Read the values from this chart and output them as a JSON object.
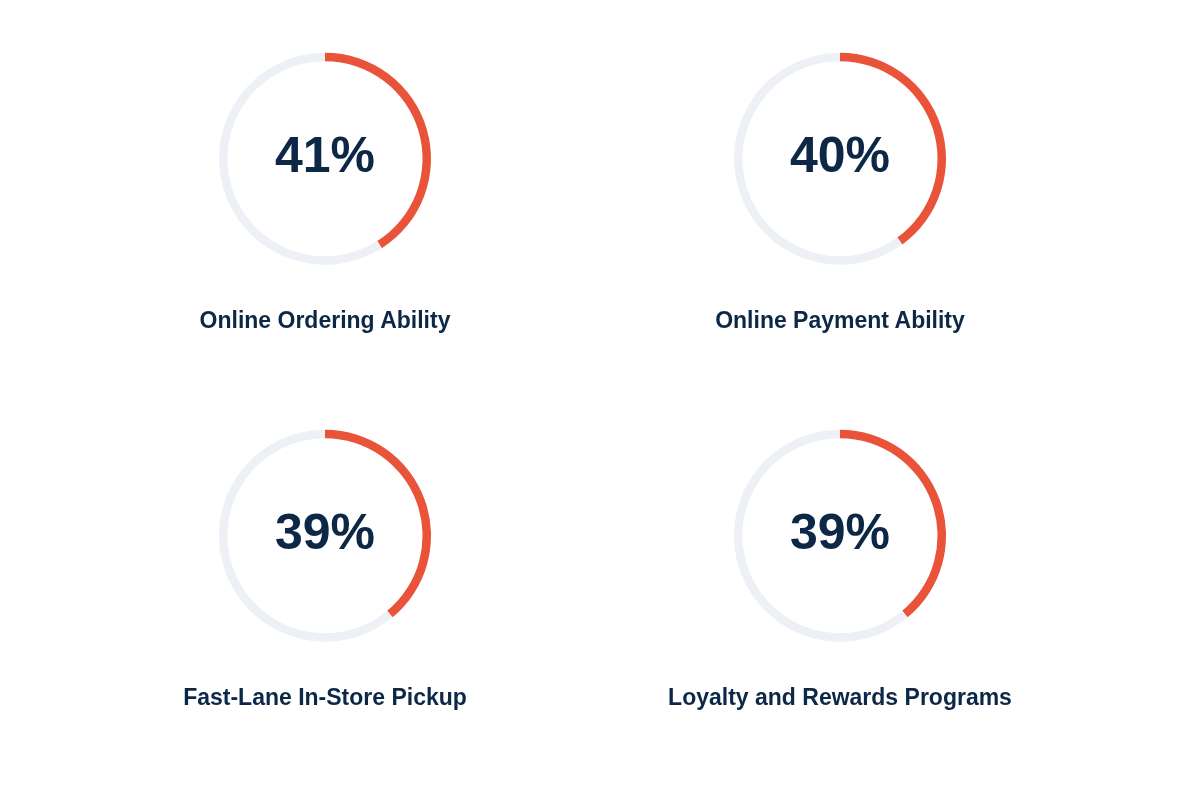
{
  "chart_data": [
    {
      "type": "donut",
      "title": "Online Ordering Ability",
      "categories": [
        null,
        null
      ],
      "values": [
        41,
        59
      ],
      "colors": [
        "#e8533a",
        "#edf1f5"
      ],
      "value_labels": [
        "41%",
        null
      ]
    },
    {
      "type": "donut",
      "title": "Online Payment Ability",
      "categories": [
        null,
        null
      ],
      "values": [
        40,
        60
      ],
      "colors": [
        "#e8533a",
        "#edf1f5"
      ],
      "value_labels": [
        "40%",
        null
      ]
    },
    {
      "type": "donut",
      "title": "Fast-Lane In-Store Pickup",
      "categories": [
        null,
        null
      ],
      "values": [
        39,
        61
      ],
      "colors": [
        "#e8533a",
        "#edf1f5"
      ],
      "value_labels": [
        "39%",
        null
      ]
    },
    {
      "type": "donut",
      "title": "Loyalty and Rewards Programs",
      "categories": [
        null,
        null
      ],
      "values": [
        39,
        61
      ],
      "colors": [
        "#e8533a",
        "#edf1f5"
      ],
      "value_labels": [
        "39%",
        null
      ]
    }
  ]
}
